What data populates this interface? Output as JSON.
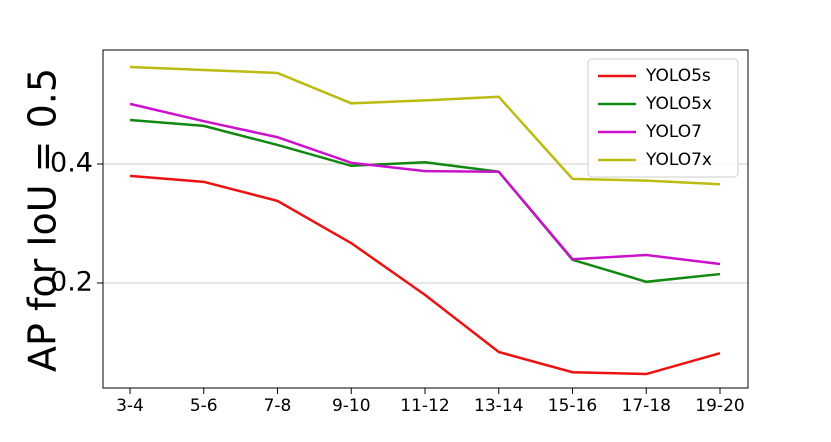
{
  "chart_data": {
    "type": "line",
    "y_label": "AP for IoU = 0.5",
    "categories": [
      "3-4",
      "5-6",
      "7-8",
      "9-10",
      "11-12",
      "13-14",
      "15-16",
      "17-18",
      "19-20"
    ],
    "series": [
      {
        "name": "YOLO5s",
        "color": "#ee1111",
        "values": [
          0.38,
          0.37,
          0.338,
          0.267,
          0.18,
          0.084,
          0.05,
          0.047,
          0.082
        ]
      },
      {
        "name": "YOLO5x",
        "color": "#118811",
        "values": [
          0.474,
          0.464,
          0.432,
          0.397,
          0.403,
          0.387,
          0.239,
          0.202,
          0.215
        ]
      },
      {
        "name": "YOLO7",
        "color": "#cc11cc",
        "values": [
          0.501,
          0.472,
          0.445,
          0.402,
          0.388,
          0.387,
          0.24,
          0.247,
          0.232
        ]
      },
      {
        "name": "YOLO7x",
        "color": "#bbbb11",
        "values": [
          0.563,
          0.558,
          0.553,
          0.502,
          0.507,
          0.513,
          0.375,
          0.372,
          0.366
        ]
      }
    ],
    "ylim": [
      0.0235,
      0.5916
    ],
    "yticks": [
      0.2,
      0.4
    ],
    "grid": true,
    "legend": "upper right"
  }
}
